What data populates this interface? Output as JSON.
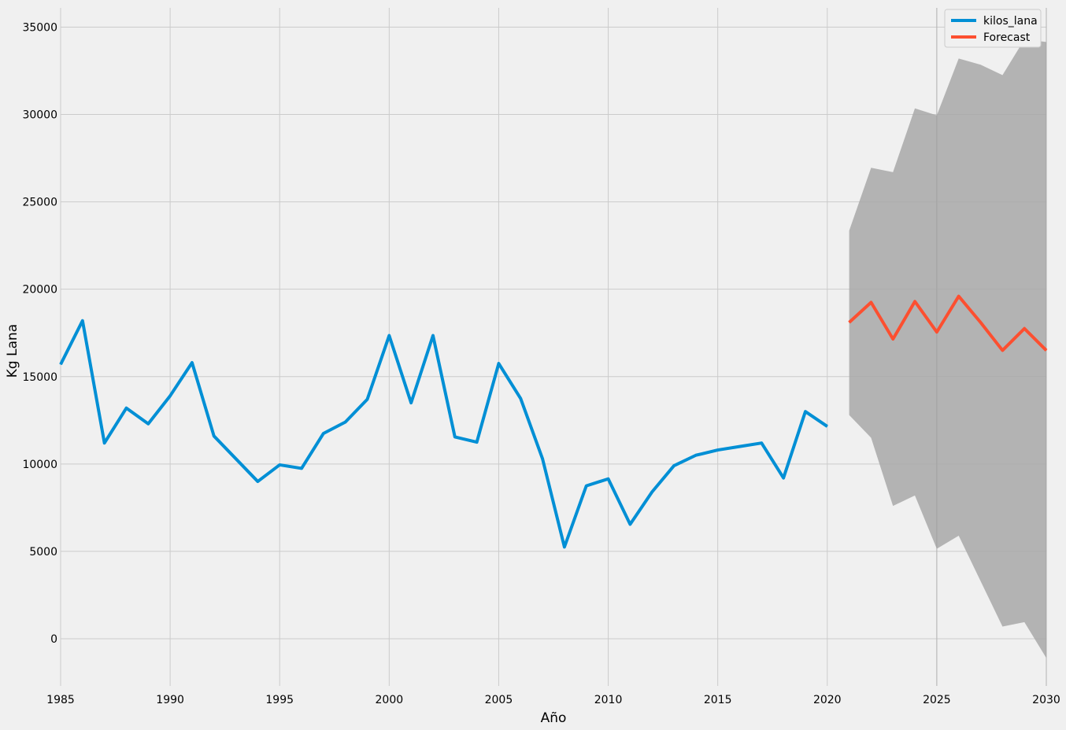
{
  "chart_data": {
    "type": "line",
    "title": "",
    "xlabel": "Año",
    "ylabel": "Kg Lana",
    "xlim": [
      1985,
      2030
    ],
    "ylim": [
      -2700,
      36100
    ],
    "x_ticks": [
      1985,
      1990,
      1995,
      2000,
      2005,
      2010,
      2015,
      2020,
      2025,
      2030
    ],
    "y_ticks": [
      0,
      5000,
      10000,
      15000,
      20000,
      25000,
      30000,
      35000
    ],
    "grid": true,
    "legend_position": "top-right",
    "series": [
      {
        "name": "kilos_lana",
        "color": "#008fd5",
        "x": [
          1985,
          1986,
          1987,
          1988,
          1989,
          1990,
          1991,
          1992,
          1993,
          1994,
          1995,
          1996,
          1997,
          1998,
          1999,
          2000,
          2001,
          2002,
          2003,
          2004,
          2005,
          2006,
          2007,
          2008,
          2009,
          2010,
          2011,
          2012,
          2013,
          2014,
          2015,
          2016,
          2017,
          2018,
          2019,
          2020
        ],
        "values": [
          15700,
          18200,
          11200,
          13200,
          12300,
          13900,
          15800,
          11600,
          10300,
          9000,
          9950,
          9750,
          11750,
          12400,
          13700,
          17350,
          13500,
          17350,
          11550,
          11250,
          15750,
          13750,
          10300,
          5250,
          8750,
          9150,
          6550,
          8400,
          9900,
          10500,
          10800,
          11000,
          11200,
          9200,
          13000,
          12150
        ]
      },
      {
        "name": "Forecast",
        "color": "#fc4f30",
        "x": [
          2021,
          2022,
          2023,
          2024,
          2025,
          2026,
          2027,
          2028,
          2029,
          2030
        ],
        "values": [
          18100,
          19250,
          17150,
          19300,
          17550,
          19600,
          18100,
          16500,
          17750,
          16500
        ]
      }
    ],
    "confidence_interval": {
      "color": "#a8a8a8",
      "x": [
        2021,
        2022,
        2023,
        2024,
        2025,
        2026,
        2027,
        2028,
        2029,
        2030
      ],
      "upper": [
        23350,
        26950,
        26700,
        30350,
        29950,
        33200,
        32850,
        32250,
        34300,
        34150
      ],
      "lower": [
        12800,
        11500,
        7600,
        8200,
        5150,
        5900,
        3300,
        700,
        950,
        -1100
      ]
    }
  }
}
